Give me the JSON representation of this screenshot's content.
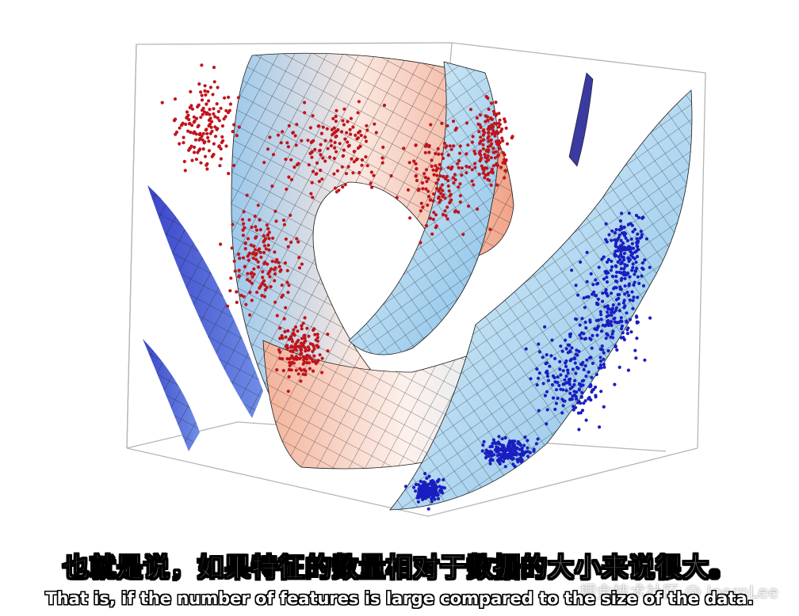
{
  "subtitle": {
    "chinese": "也就是说，如果特征的数量相对于数据的大小来说很大。",
    "english": "That is, if the number of features is large compared to the size of the data."
  },
  "watermark": {
    "text": "掘金技术社区 @ JoernLee"
  },
  "scene": {
    "class_a_color": "#c0141c",
    "class_b_color": "#1a1ec0",
    "surface_light": "#dff3fb",
    "surface_mid": "#8fc7ec",
    "surface_dark": "#4c62d8",
    "surface_warm": "#f2a98c"
  }
}
